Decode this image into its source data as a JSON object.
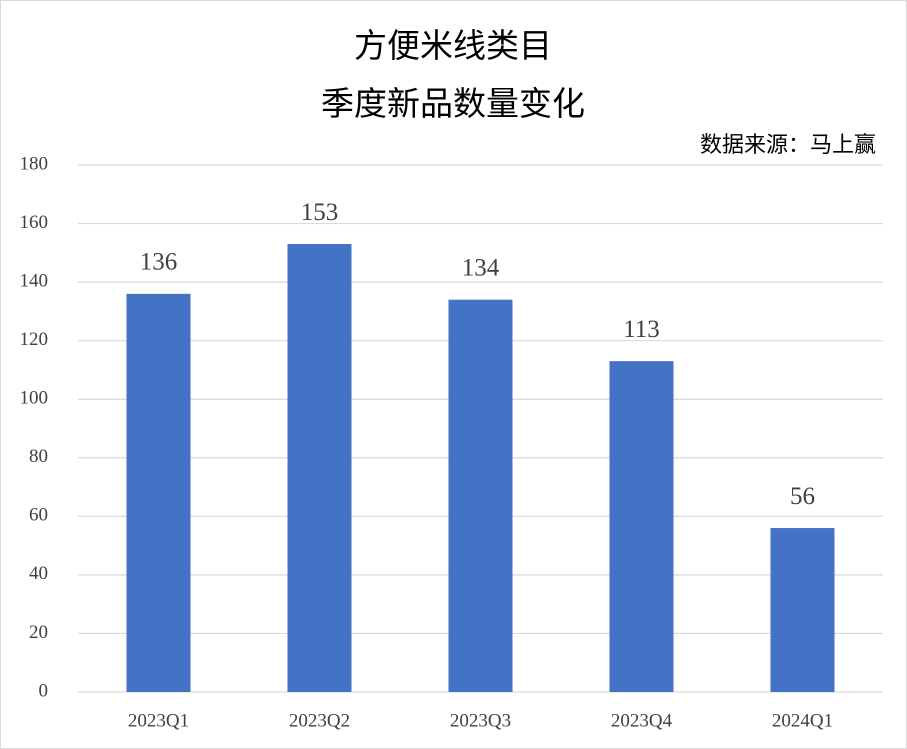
{
  "chart_data": {
    "type": "bar",
    "title": [
      "方便米线类目",
      "季度新品数量变化"
    ],
    "annotation": "数据来源：马上赢",
    "categories": [
      "2023Q1",
      "2023Q2",
      "2023Q3",
      "2023Q4",
      "2024Q1"
    ],
    "values": [
      136,
      153,
      134,
      113,
      56
    ],
    "color": "#4472c4",
    "ylim": [
      0,
      180
    ],
    "yticks": [
      0,
      20,
      40,
      60,
      80,
      100,
      120,
      140,
      160,
      180
    ],
    "grid": true
  }
}
